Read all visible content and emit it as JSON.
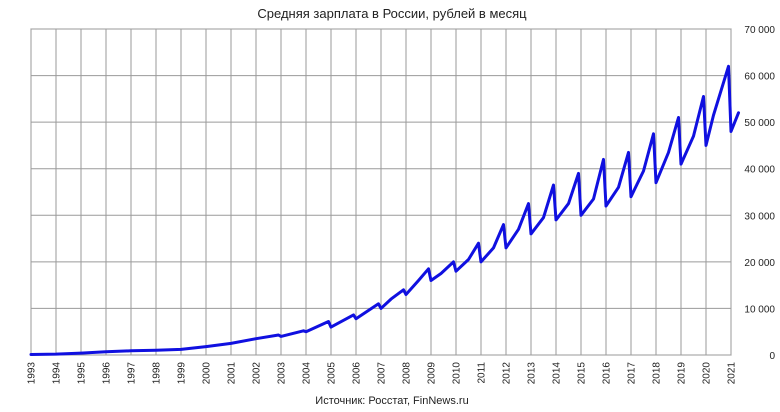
{
  "chart_data": {
    "type": "line",
    "title": "Средняя зарплата в России, рублей в месяц",
    "source": "Источник: Росстат, FinNews.ru",
    "xlabel": "",
    "ylabel": "",
    "xlim": [
      1993,
      2021
    ],
    "ylim": [
      0,
      70000
    ],
    "y_ticks": [
      0,
      10000,
      20000,
      30000,
      40000,
      50000,
      60000,
      70000
    ],
    "y_tick_labels": [
      "0",
      "10 000",
      "20 000",
      "30 000",
      "40 000",
      "50 000",
      "60 000",
      "70 000"
    ],
    "x_ticks": [
      1993,
      1994,
      1995,
      1996,
      1997,
      1998,
      1999,
      2000,
      2001,
      2002,
      2003,
      2004,
      2005,
      2006,
      2007,
      2008,
      2009,
      2010,
      2011,
      2012,
      2013,
      2014,
      2015,
      2016,
      2017,
      2018,
      2019,
      2020,
      2021
    ],
    "x_tick_labels": [
      "1993",
      "1994",
      "1995",
      "1996",
      "1997",
      "1998",
      "1999",
      "2000",
      "2001",
      "2002",
      "2003",
      "2004",
      "2005",
      "2006",
      "2007",
      "2008",
      "2009",
      "2010",
      "2011",
      "2012",
      "2013",
      "2014",
      "2015",
      "2016",
      "2017",
      "2018",
      "2019",
      "2020",
      "2021"
    ],
    "y_axis_position": "right",
    "grid": true,
    "legend": "none",
    "line_color": "#1010e0",
    "series": [
      {
        "values": [
          [
            1993.0,
            100
          ],
          [
            1994.0,
            200
          ],
          [
            1995.0,
            400
          ],
          [
            1996.0,
            700
          ],
          [
            1997.0,
            900
          ],
          [
            1998.0,
            1000
          ],
          [
            1999.0,
            1200
          ],
          [
            2000.0,
            1800
          ],
          [
            2001.0,
            2500
          ],
          [
            2002.0,
            3500
          ],
          [
            2002.9,
            4300
          ],
          [
            2003.0,
            4000
          ],
          [
            2003.9,
            5200
          ],
          [
            2004.0,
            5000
          ],
          [
            2004.9,
            7200
          ],
          [
            2005.0,
            6000
          ],
          [
            2005.9,
            8600
          ],
          [
            2006.0,
            7800
          ],
          [
            2006.9,
            11000
          ],
          [
            2007.0,
            10000
          ],
          [
            2007.4,
            12000
          ],
          [
            2007.9,
            14000
          ],
          [
            2008.0,
            13000
          ],
          [
            2008.5,
            16000
          ],
          [
            2008.9,
            18500
          ],
          [
            2009.0,
            16000
          ],
          [
            2009.4,
            17500
          ],
          [
            2009.9,
            20000
          ],
          [
            2010.0,
            18000
          ],
          [
            2010.5,
            20500
          ],
          [
            2010.9,
            24000
          ],
          [
            2011.0,
            20000
          ],
          [
            2011.5,
            23000
          ],
          [
            2011.9,
            28000
          ],
          [
            2012.0,
            23000
          ],
          [
            2012.5,
            27000
          ],
          [
            2012.9,
            32500
          ],
          [
            2013.0,
            26000
          ],
          [
            2013.5,
            29500
          ],
          [
            2013.9,
            36500
          ],
          [
            2014.0,
            29000
          ],
          [
            2014.5,
            32500
          ],
          [
            2014.9,
            39000
          ],
          [
            2015.0,
            30000
          ],
          [
            2015.5,
            33500
          ],
          [
            2015.9,
            42000
          ],
          [
            2016.0,
            32000
          ],
          [
            2016.5,
            36000
          ],
          [
            2016.9,
            43500
          ],
          [
            2017.0,
            34000
          ],
          [
            2017.5,
            39500
          ],
          [
            2017.9,
            47500
          ],
          [
            2018.0,
            37000
          ],
          [
            2018.5,
            43500
          ],
          [
            2018.9,
            51000
          ],
          [
            2019.0,
            41000
          ],
          [
            2019.5,
            47000
          ],
          [
            2019.9,
            55500
          ],
          [
            2020.0,
            45000
          ],
          [
            2020.3,
            51500
          ],
          [
            2020.9,
            62000
          ],
          [
            2021.0,
            48000
          ],
          [
            2021.3,
            52000
          ]
        ]
      }
    ]
  }
}
